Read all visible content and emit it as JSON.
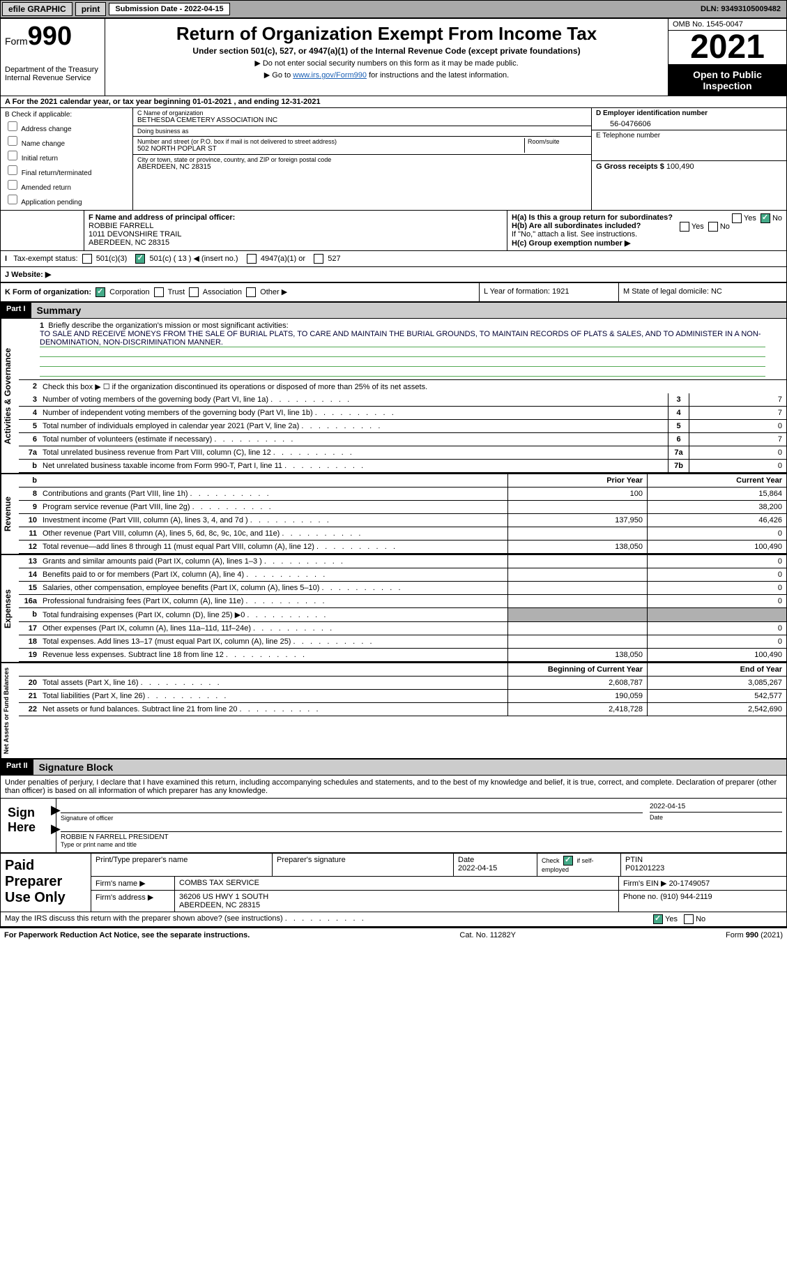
{
  "topbar": {
    "efile": "efile GRAPHIC",
    "print": "print",
    "subdate_lbl": "Submission Date - 2022-04-15",
    "dln": "DLN: 93493105009482"
  },
  "header": {
    "form_label": "Form",
    "form_no": "990",
    "dept": "Department of the Treasury\nInternal Revenue Service",
    "title": "Return of Organization Exempt From Income Tax",
    "sub1": "Under section 501(c), 527, or 4947(a)(1) of the Internal Revenue Code (except private foundations)",
    "sub2": "Do not enter social security numbers on this form as it may be made public.",
    "sub3_pre": "Go to ",
    "sub3_link": "www.irs.gov/Form990",
    "sub3_post": " for instructions and the latest information.",
    "omb": "OMB No. 1545-0047",
    "year": "2021",
    "open": "Open to Public Inspection"
  },
  "row_a": "A For the 2021 calendar year, or tax year beginning 01-01-2021    , and ending 12-31-2021",
  "col_b": {
    "hdr": "B Check if applicable:",
    "opts": [
      "Address change",
      "Name change",
      "Initial return",
      "Final return/terminated",
      "Amended return",
      "Application pending"
    ]
  },
  "col_c": {
    "name_lbl": "C Name of organization",
    "name": "BETHESDA CEMETERY ASSOCIATION INC",
    "dba_lbl": "Doing business as",
    "dba": "",
    "street_lbl": "Number and street (or P.O. box if mail is not delivered to street address)",
    "room_lbl": "Room/suite",
    "street": "502 NORTH POPLAR ST",
    "city_lbl": "City or town, state or province, country, and ZIP or foreign postal code",
    "city": "ABERDEEN, NC  28315"
  },
  "col_d": {
    "ein_lbl": "D Employer identification number",
    "ein": "56-0476606",
    "phone_lbl": "E Telephone number",
    "phone": "",
    "gross_lbl": "G Gross receipts $",
    "gross": "100,490"
  },
  "sect_f": {
    "lbl": "F Name and address of principal officer:",
    "name": "ROBBIE FARRELL",
    "addr1": "1011 DEVONSHIRE TRAIL",
    "addr2": "ABERDEEN, NC  28315"
  },
  "sect_h": {
    "ha": "H(a)  Is this a group return for subordinates?",
    "ha_yes": "Yes",
    "ha_no": "No",
    "hb": "H(b)  Are all subordinates included?",
    "hb_note": "If \"No,\" attach a list. See instructions.",
    "hc": "H(c)  Group exemption number ▶"
  },
  "line_i": {
    "lbl": "Tax-exempt status:",
    "o1": "501(c)(3)",
    "o2": "501(c) ( 13 ) ◀ (insert no.)",
    "o3": "4947(a)(1) or",
    "o4": "527"
  },
  "line_j": {
    "lbl": "J  Website: ▶"
  },
  "line_k": {
    "k": "K Form of organization:",
    "corp": "Corporation",
    "trust": "Trust",
    "assoc": "Association",
    "other": "Other ▶",
    "l": "L Year of formation: 1921",
    "m": "M State of legal domicile: NC"
  },
  "part1": {
    "hdr": "Part I",
    "title": "Summary",
    "q1": "Briefly describe the organization's mission or most significant activities:",
    "mission": "TO SALE AND RECEIVE MONEYS FROM THE SALE OF BURIAL PLATS, TO CARE AND MAINTAIN THE BURIAL GROUNDS, TO MAINTAIN RECORDS OF PLATS & SALES, AND TO ADMINISTER IN A NON-DENOMINATION, NON-DISCRIMINATION MANNER.",
    "q2": "Check this box ▶ ☐ if the organization discontinued its operations or disposed of more than 25% of its net assets.",
    "rows_ag": [
      {
        "n": "3",
        "t": "Number of voting members of the governing body (Part VI, line 1a)",
        "b": "3",
        "v": "7"
      },
      {
        "n": "4",
        "t": "Number of independent voting members of the governing body (Part VI, line 1b)",
        "b": "4",
        "v": "7"
      },
      {
        "n": "5",
        "t": "Total number of individuals employed in calendar year 2021 (Part V, line 2a)",
        "b": "5",
        "v": "0"
      },
      {
        "n": "6",
        "t": "Total number of volunteers (estimate if necessary)",
        "b": "6",
        "v": "7"
      },
      {
        "n": "7a",
        "t": "Total unrelated business revenue from Part VIII, column (C), line 12",
        "b": "7a",
        "v": "0"
      },
      {
        "n": "b",
        "t": "Net unrelated business taxable income from Form 990-T, Part I, line 11",
        "b": "7b",
        "v": "0"
      }
    ],
    "col_prior": "Prior Year",
    "col_curr": "Current Year",
    "rev": [
      {
        "n": "8",
        "t": "Contributions and grants (Part VIII, line 1h)",
        "p": "100",
        "c": "15,864"
      },
      {
        "n": "9",
        "t": "Program service revenue (Part VIII, line 2g)",
        "p": "",
        "c": "38,200"
      },
      {
        "n": "10",
        "t": "Investment income (Part VIII, column (A), lines 3, 4, and 7d )",
        "p": "137,950",
        "c": "46,426"
      },
      {
        "n": "11",
        "t": "Other revenue (Part VIII, column (A), lines 5, 6d, 8c, 9c, 10c, and 11e)",
        "p": "",
        "c": "0"
      },
      {
        "n": "12",
        "t": "Total revenue—add lines 8 through 11 (must equal Part VIII, column (A), line 12)",
        "p": "138,050",
        "c": "100,490"
      }
    ],
    "exp": [
      {
        "n": "13",
        "t": "Grants and similar amounts paid (Part IX, column (A), lines 1–3 )",
        "p": "",
        "c": "0"
      },
      {
        "n": "14",
        "t": "Benefits paid to or for members (Part IX, column (A), line 4)",
        "p": "",
        "c": "0"
      },
      {
        "n": "15",
        "t": "Salaries, other compensation, employee benefits (Part IX, column (A), lines 5–10)",
        "p": "",
        "c": "0"
      },
      {
        "n": "16a",
        "t": "Professional fundraising fees (Part IX, column (A), line 11e)",
        "p": "",
        "c": "0"
      },
      {
        "n": "b",
        "t": "Total fundraising expenses (Part IX, column (D), line 25) ▶0",
        "p": "grey",
        "c": "grey"
      },
      {
        "n": "17",
        "t": "Other expenses (Part IX, column (A), lines 11a–11d, 11f–24e)",
        "p": "",
        "c": "0"
      },
      {
        "n": "18",
        "t": "Total expenses. Add lines 13–17 (must equal Part IX, column (A), line 25)",
        "p": "",
        "c": "0"
      },
      {
        "n": "19",
        "t": "Revenue less expenses. Subtract line 18 from line 12",
        "p": "138,050",
        "c": "100,490"
      }
    ],
    "col_boy": "Beginning of Current Year",
    "col_eoy": "End of Year",
    "net": [
      {
        "n": "20",
        "t": "Total assets (Part X, line 16)",
        "p": "2,608,787",
        "c": "3,085,267"
      },
      {
        "n": "21",
        "t": "Total liabilities (Part X, line 26)",
        "p": "190,059",
        "c": "542,577"
      },
      {
        "n": "22",
        "t": "Net assets or fund balances. Subtract line 21 from line 20",
        "p": "2,418,728",
        "c": "2,542,690"
      }
    ],
    "tab_ag": "Activities & Governance",
    "tab_rev": "Revenue",
    "tab_exp": "Expenses",
    "tab_net": "Net Assets or Fund Balances"
  },
  "part2": {
    "hdr": "Part II",
    "title": "Signature Block",
    "decl": "Under penalties of perjury, I declare that I have examined this return, including accompanying schedules and statements, and to the best of my knowledge and belief, it is true, correct, and complete. Declaration of preparer (other than officer) is based on all information of which preparer has any knowledge.",
    "sign_here": "Sign Here",
    "sig_off": "Signature of officer",
    "sig_date": "Date",
    "sig_date_val": "2022-04-15",
    "sig_name": "ROBBIE N FARRELL  PRESIDENT",
    "sig_type": "Type or print name and title"
  },
  "paid": {
    "lbl": "Paid Preparer Use Only",
    "r1": {
      "c1": "Print/Type preparer's name",
      "c2": "Preparer's signature",
      "c3": "Date\n2022-04-15",
      "c4": "Check ☑ if self-employed",
      "c5": "PTIN\nP01201223"
    },
    "r2": {
      "lbl": "Firm's name    ▶",
      "val": "COMBS TAX SERVICE",
      "ein_lbl": "Firm's EIN ▶",
      "ein": "20-1749057"
    },
    "r3": {
      "lbl": "Firm's address ▶",
      "val": "36206 US HWY 1 SOUTH\nABERDEEN, NC  28315",
      "ph_lbl": "Phone no.",
      "ph": "(910) 944-2119"
    }
  },
  "discuss": "May the IRS discuss this return with the preparer shown above? (see instructions)",
  "discuss_yes": "Yes",
  "discuss_no": "No",
  "footer": {
    "l": "For Paperwork Reduction Act Notice, see the separate instructions.",
    "m": "Cat. No. 11282Y",
    "r": "Form 990 (2021)"
  }
}
